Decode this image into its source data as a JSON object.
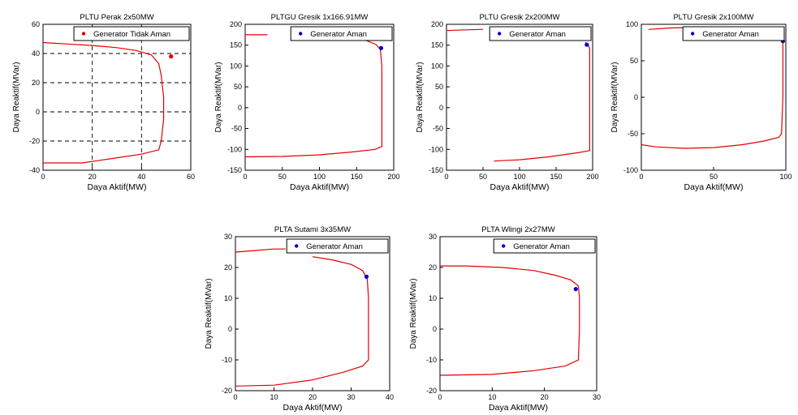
{
  "colors": {
    "curve": "#e00000",
    "unsafe_point": "#e00000",
    "safe_point": "#0000cc",
    "grid": "#000000"
  },
  "chart_data": [
    {
      "type": "line",
      "title": "PLTU Perak 2x50MW",
      "xlabel": "Daya Aktif(MW)",
      "ylabel": "Daya Reaktif(MVar)",
      "xlim": [
        0,
        60
      ],
      "ylim": [
        -40,
        60
      ],
      "xticks": [
        0,
        20,
        40,
        60
      ],
      "yticks": [
        -40,
        -20,
        0,
        20,
        40,
        60
      ],
      "grid": true,
      "legend": {
        "label": "Generator Tidak Aman",
        "placement": "top-right",
        "marker_color": "#e00000"
      },
      "curve": [
        [
          0,
          -35
        ],
        [
          16,
          -35
        ],
        [
          28,
          -32
        ],
        [
          40,
          -29
        ],
        [
          47,
          -26
        ],
        [
          48,
          -20
        ],
        [
          49,
          -5
        ],
        [
          49,
          10
        ],
        [
          48,
          25
        ],
        [
          47,
          33
        ],
        [
          44,
          39
        ],
        [
          38,
          42
        ],
        [
          30,
          44
        ],
        [
          20,
          45.5
        ],
        [
          10,
          46.5
        ],
        [
          0,
          47.5
        ]
      ],
      "point": {
        "x": 52,
        "y": 38,
        "color": "#e00000"
      }
    },
    {
      "type": "line",
      "title": "PLTGU Gresik 1x166.91MW",
      "xlabel": "Daya Aktif(MW)",
      "ylabel": "Daya Reaktif(MVar)",
      "xlim": [
        0,
        200
      ],
      "ylim": [
        -150,
        200
      ],
      "xticks": [
        0,
        50,
        100,
        150,
        200
      ],
      "yticks": [
        -150,
        -100,
        -50,
        0,
        50,
        100,
        150,
        200
      ],
      "grid": false,
      "legend": {
        "label": "Generator Aman",
        "placement": "top-right",
        "marker_color": "#0000cc"
      },
      "curve": [
        [
          0,
          -118
        ],
        [
          50,
          -117
        ],
        [
          100,
          -113
        ],
        [
          140,
          -107
        ],
        [
          175,
          -100
        ],
        [
          184,
          -93
        ],
        [
          184,
          -50
        ],
        [
          184,
          0
        ],
        [
          184,
          50
        ],
        [
          184,
          100
        ],
        [
          182,
          140
        ],
        [
          176,
          152
        ],
        [
          160,
          163
        ],
        [
          140,
          167
        ]
      ],
      "curve2": [
        [
          0,
          175
        ],
        [
          30,
          175
        ]
      ],
      "point": {
        "x": 183,
        "y": 143,
        "color": "#0000cc"
      }
    },
    {
      "type": "line",
      "title": "PLTU Gresik 2x200MW",
      "xlabel": "Daya Aktif(MW)",
      "ylabel": "Daya Reaktif(MVar)",
      "xlim": [
        0,
        200
      ],
      "ylim": [
        -150,
        200
      ],
      "xticks": [
        0,
        50,
        100,
        150,
        200
      ],
      "yticks": [
        -150,
        -100,
        -50,
        0,
        50,
        100,
        150,
        200
      ],
      "grid": false,
      "legend": {
        "label": "Generator Aman",
        "placement": "top-right",
        "marker_color": "#0000cc"
      },
      "curve": [
        [
          65,
          -128
        ],
        [
          100,
          -125
        ],
        [
          140,
          -118
        ],
        [
          180,
          -108
        ],
        [
          196,
          -103
        ],
        [
          196,
          -50
        ],
        [
          196,
          0
        ],
        [
          196,
          50
        ],
        [
          196,
          100
        ],
        [
          196,
          140
        ],
        [
          194,
          152
        ],
        [
          190,
          157
        ]
      ],
      "curve2": [
        [
          0,
          185
        ],
        [
          15,
          186
        ],
        [
          50,
          188
        ]
      ],
      "point": {
        "x": 192,
        "y": 151,
        "color": "#0000cc"
      }
    },
    {
      "type": "line",
      "title": "PLTU Gresik 2x100MW",
      "xlabel": "Daya Aktif(MW)",
      "ylabel": "Daya Reaktif(MVar)",
      "xlim": [
        0,
        100
      ],
      "ylim": [
        -100,
        100
      ],
      "xticks": [
        0,
        50,
        100
      ],
      "yticks": [
        -100,
        -50,
        0,
        50,
        100
      ],
      "grid": false,
      "legend": {
        "label": "Generator Aman",
        "placement": "top-right",
        "marker_color": "#0000cc"
      },
      "curve": [
        [
          0,
          -65
        ],
        [
          10,
          -68
        ],
        [
          30,
          -70
        ],
        [
          50,
          -69
        ],
        [
          70,
          -65
        ],
        [
          85,
          -60
        ],
        [
          95,
          -55
        ],
        [
          97,
          -50
        ],
        [
          98,
          0
        ],
        [
          98,
          50
        ],
        [
          98,
          75
        ],
        [
          96,
          85
        ]
      ],
      "curve2": [
        [
          5,
          93
        ],
        [
          20,
          95
        ],
        [
          40,
          96
        ],
        [
          60,
          96
        ],
        [
          80,
          95
        ]
      ],
      "point": {
        "x": 98,
        "y": 77,
        "color": "#0000cc"
      }
    },
    {
      "type": "line",
      "title": "PLTA Sutami 3x35MW",
      "xlabel": "Daya Aktif(MW)",
      "ylabel": "Daya Reaktif(MVar)",
      "xlim": [
        0,
        40
      ],
      "ylim": [
        -20,
        30
      ],
      "xticks": [
        0,
        10,
        20,
        30,
        40
      ],
      "yticks": [
        -20,
        -10,
        0,
        10,
        20,
        30
      ],
      "grid": false,
      "legend": {
        "label": "Generator Aman",
        "placement": "top-right",
        "marker_color": "#0000cc"
      },
      "curve": [
        [
          0,
          -18.5
        ],
        [
          10,
          -18.2
        ],
        [
          20,
          -16.5
        ],
        [
          28,
          -14
        ],
        [
          33,
          -12
        ],
        [
          34.5,
          -10
        ],
        [
          34.5,
          0
        ],
        [
          34.5,
          10
        ],
        [
          34.2,
          16
        ],
        [
          33,
          19
        ],
        [
          30,
          21
        ],
        [
          25,
          22.5
        ],
        [
          20,
          23.5
        ]
      ],
      "curve2": [
        [
          0,
          25
        ],
        [
          5,
          25.5
        ],
        [
          10,
          26
        ],
        [
          13,
          26
        ]
      ],
      "point": {
        "x": 34,
        "y": 17,
        "color": "#0000cc"
      }
    },
    {
      "type": "line",
      "title": "PLTA Wlingi 2x27MW",
      "xlabel": "Daya Aktif(MW)",
      "ylabel": "Daya Reaktif(MVar)",
      "xlim": [
        0,
        30
      ],
      "ylim": [
        -20,
        30
      ],
      "xticks": [
        0,
        10,
        20,
        30
      ],
      "yticks": [
        -20,
        -10,
        0,
        10,
        20,
        30
      ],
      "grid": false,
      "legend": {
        "label": "Generator Aman",
        "placement": "top-right",
        "marker_color": "#0000cc"
      },
      "curve": [
        [
          0,
          -15
        ],
        [
          10,
          -14.7
        ],
        [
          18,
          -13.5
        ],
        [
          24,
          -12
        ],
        [
          26.5,
          -10
        ],
        [
          26.7,
          0
        ],
        [
          26.7,
          10
        ],
        [
          26.5,
          14
        ],
        [
          25,
          16
        ],
        [
          22,
          17.5
        ],
        [
          18,
          19
        ],
        [
          12,
          20
        ],
        [
          5,
          20.5
        ],
        [
          0,
          20.5
        ]
      ],
      "point": {
        "x": 26,
        "y": 13,
        "color": "#0000cc"
      }
    }
  ]
}
